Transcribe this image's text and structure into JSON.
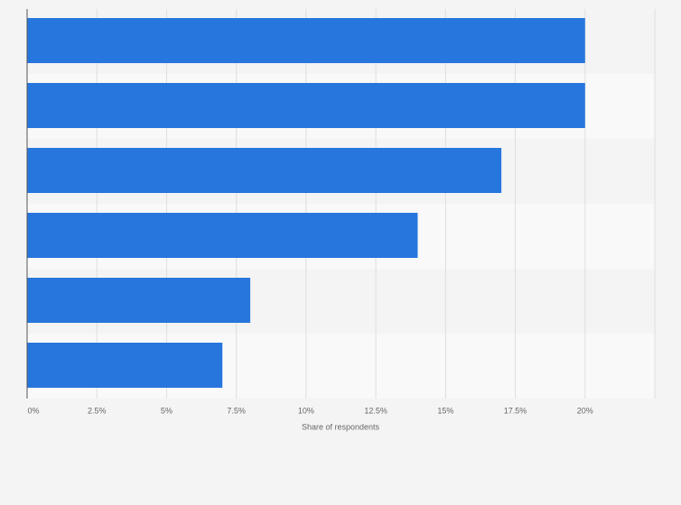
{
  "chart_data": {
    "type": "bar",
    "orientation": "horizontal",
    "categories": [
      null,
      null,
      null,
      null,
      null,
      null
    ],
    "values": [
      20,
      20,
      17,
      14,
      8,
      7
    ],
    "color": "#2776dd",
    "xlabel": "Share of respondents",
    "xlim": [
      0,
      22.5
    ],
    "xticks": [
      {
        "value": 0,
        "label": "0%"
      },
      {
        "value": 2.5,
        "label": "2.5%"
      },
      {
        "value": 5,
        "label": "5%"
      },
      {
        "value": 7.5,
        "label": "7.5%"
      },
      {
        "value": 10,
        "label": "10%"
      },
      {
        "value": 12.5,
        "label": "12.5%"
      },
      {
        "value": 15,
        "label": "15%"
      },
      {
        "value": 17.5,
        "label": "17.5%"
      },
      {
        "value": 20,
        "label": "20%"
      }
    ],
    "grid": true
  }
}
